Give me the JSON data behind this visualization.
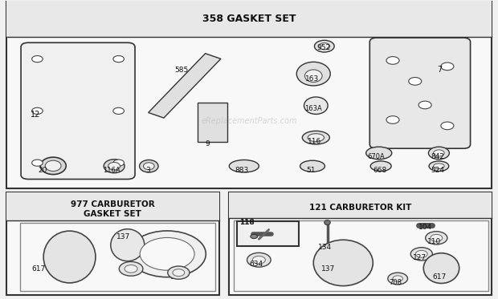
{
  "title": "358 GASKET SET",
  "section977_title": "977 CARBURETOR\nGASKET SET",
  "section121_title": "121 CARBURETOR KIT",
  "bg_color": "#f0f0f0",
  "border_color": "#333333",
  "text_color": "#111111",
  "watermark": "eReplacementParts.com"
}
